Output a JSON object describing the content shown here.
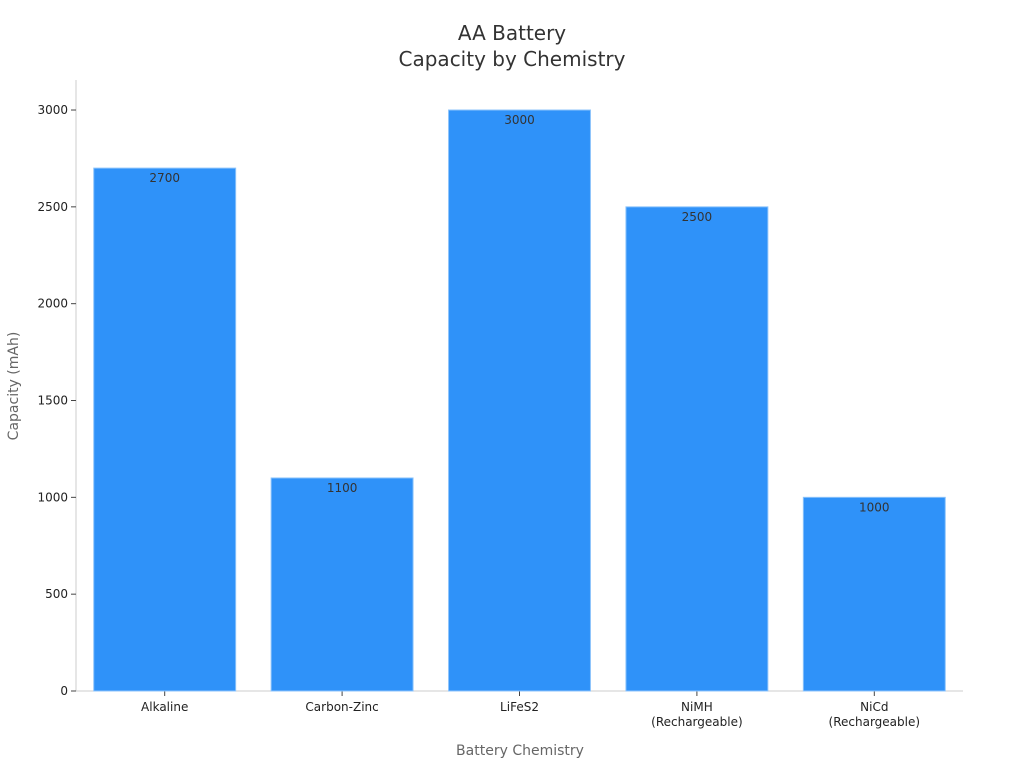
{
  "chart_data": {
    "type": "bar",
    "title": "AA Battery\nCapacity by Chemistry",
    "x_label": "Battery Chemistry",
    "y_label": "Capacity (mAh)",
    "categories": [
      "Alkaline",
      "Carbon-Zinc",
      "LiFeS2",
      "NiMH\n(Rechargeable)",
      "NiCd\n(Rechargeable)"
    ],
    "values": [
      2700,
      1100,
      3000,
      2500,
      1000
    ],
    "color": "#2f92f9",
    "ylim": [
      0,
      3155
    ],
    "yticks": [
      0,
      500,
      1000,
      1500,
      2000,
      2500,
      3000
    ],
    "grid": false
  }
}
